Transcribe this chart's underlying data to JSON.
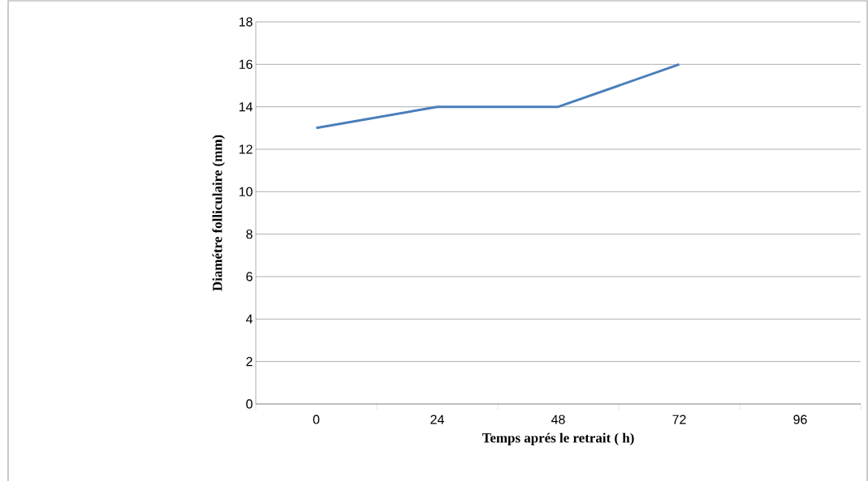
{
  "chart_data": {
    "type": "line",
    "xlabel": "Temps aprés le retrait ( h)",
    "ylabel": "Diamétre folliculaire (mm)",
    "categories": [
      "0",
      "24",
      "48",
      "72",
      "96"
    ],
    "series": [
      {
        "color": "#4a7ebb",
        "values": [
          13,
          14,
          14,
          16,
          null
        ]
      }
    ],
    "ylim": [
      0,
      18
    ],
    "yticks": [
      0,
      2,
      4,
      6,
      8,
      10,
      12,
      14,
      16,
      18
    ],
    "grid": "y",
    "marker": "none",
    "line_style": "solid"
  }
}
